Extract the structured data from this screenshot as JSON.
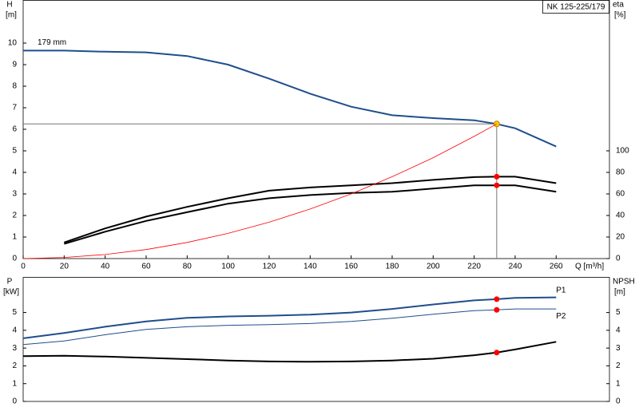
{
  "chart_data": [
    {
      "type": "line",
      "title": "NK 125-225/179",
      "ylabel": "H",
      "yunit": "[m]",
      "y2label": "eta",
      "y2unit": "[%]",
      "xlabel": "Q [m³/h]",
      "x": [
        0,
        20,
        40,
        60,
        80,
        100,
        120,
        140,
        160,
        180,
        200,
        220,
        231,
        240,
        260
      ],
      "xlim": [
        0,
        286
      ],
      "xticks": [
        0,
        20,
        40,
        60,
        80,
        100,
        120,
        140,
        160,
        180,
        200,
        220,
        240,
        260
      ],
      "ylim": [
        0,
        12
      ],
      "yticks": [
        0,
        1,
        2,
        3,
        4,
        5,
        6,
        7,
        8,
        9,
        10
      ],
      "y2lim": [
        0,
        240
      ],
      "y2ticks": [
        0,
        20,
        40,
        60,
        80,
        100
      ],
      "duty_q": 231,
      "series": [
        {
          "name": "179 mm",
          "label_at": "start",
          "color": "#1f4e8c",
          "width": 2,
          "point_color": "#ffcc00",
          "values": [
            9.65,
            9.65,
            9.6,
            9.57,
            9.4,
            9.0,
            8.35,
            7.65,
            7.05,
            6.65,
            6.52,
            6.42,
            6.25,
            6.05,
            5.2
          ]
        },
        {
          "axis": "y2",
          "color": "#000000",
          "width": 2,
          "point_color": "#ff0000",
          "values": [
            null,
            15,
            28,
            39,
            48,
            56,
            63,
            66,
            68,
            70,
            73,
            75.6,
            76,
            76,
            70
          ]
        },
        {
          "axis": "y2",
          "color": "#000000",
          "width": 2,
          "point_color": "#ff0000",
          "values": [
            null,
            13.6,
            25,
            35,
            43,
            51,
            56,
            59,
            61,
            62,
            65,
            68,
            68,
            68,
            62
          ]
        },
        {
          "color": "#ff0000",
          "width": 0.8,
          "values": [
            0,
            0.05,
            0.19,
            0.42,
            0.75,
            1.17,
            1.69,
            2.3,
            3.0,
            3.8,
            4.68,
            5.67,
            6.25,
            null,
            null
          ]
        }
      ]
    },
    {
      "type": "line",
      "ylabel": "P",
      "yunit": "[kW]",
      "y2label": "NPSH",
      "y2unit": "[m]",
      "x": [
        0,
        20,
        40,
        60,
        80,
        100,
        120,
        140,
        160,
        180,
        200,
        220,
        231,
        240,
        260
      ],
      "xlim": [
        0,
        286
      ],
      "ylim": [
        0,
        7
      ],
      "yticks": [
        0,
        1,
        2,
        3,
        4,
        5
      ],
      "y2lim": [
        0,
        7
      ],
      "y2ticks": [
        0,
        1,
        2,
        3,
        4,
        5
      ],
      "duty_q": 231,
      "series": [
        {
          "name": "P1",
          "label_at": "end-above",
          "color": "#1f4e8c",
          "width": 2,
          "point_color": "#ff0000",
          "values": [
            3.55,
            3.85,
            4.2,
            4.5,
            4.7,
            4.78,
            4.82,
            4.88,
            5.0,
            5.2,
            5.45,
            5.68,
            5.75,
            5.82,
            5.85
          ]
        },
        {
          "name": "P2",
          "label_at": "end-below",
          "color": "#1f4e8c",
          "width": 1,
          "point_color": "#ff0000",
          "values": [
            3.2,
            3.4,
            3.75,
            4.05,
            4.2,
            4.28,
            4.32,
            4.38,
            4.5,
            4.68,
            4.9,
            5.1,
            5.15,
            5.2,
            5.2
          ]
        },
        {
          "axis": "y2",
          "color": "#000000",
          "width": 2,
          "point_color": "#ff0000",
          "values": [
            2.55,
            2.57,
            2.52,
            2.45,
            2.38,
            2.3,
            2.25,
            2.23,
            2.25,
            2.3,
            2.4,
            2.6,
            2.75,
            2.92,
            3.35
          ]
        }
      ]
    }
  ]
}
